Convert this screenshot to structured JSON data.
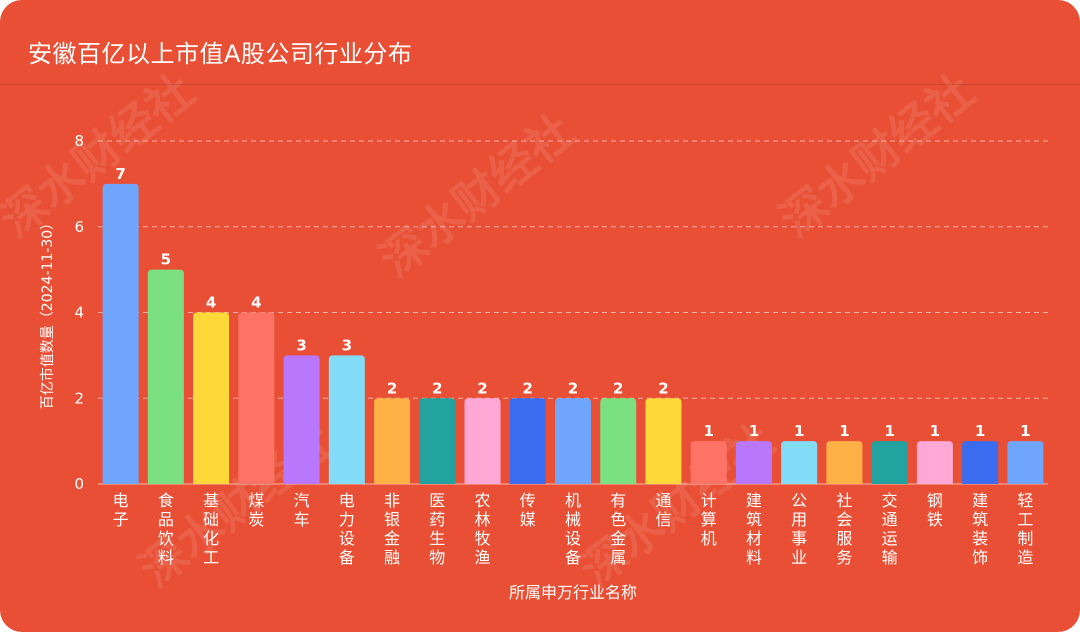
{
  "chart_data": {
    "type": "bar",
    "title": "安徽百亿以上市值A股公司行业分布",
    "xlabel": "所属申万行业名称",
    "ylabel": "百亿市值数量（2024-11-30）",
    "ylim": [
      0,
      8
    ],
    "yticks": [
      0,
      2,
      4,
      6,
      8
    ],
    "grid": true,
    "categories": [
      "电子",
      "食品饮料",
      "基础化工",
      "煤炭",
      "汽车",
      "电力设备",
      "非银金融",
      "医药生物",
      "农林牧渔",
      "传媒",
      "机械设备",
      "有色金属",
      "通信",
      "计算机",
      "建筑材料",
      "公用事业",
      "社会服务",
      "交通运输",
      "钢铁",
      "建筑装饰",
      "轻工制造"
    ],
    "values": [
      7,
      5,
      4,
      4,
      3,
      3,
      2,
      2,
      2,
      2,
      2,
      2,
      2,
      1,
      1,
      1,
      1,
      1,
      1,
      1,
      1
    ],
    "colors": [
      "#6FA6FB",
      "#7BE07F",
      "#FFD93A",
      "#FF7367",
      "#B978FB",
      "#84DDF8",
      "#FFB146",
      "#23A3A0",
      "#FFA8D6",
      "#3B6CF0",
      "#6FA6FB",
      "#7BE07F",
      "#FFD93A",
      "#FF7367",
      "#B978FB",
      "#84DDF8",
      "#FFB146",
      "#23A3A0",
      "#FFA8D6",
      "#3B6CF0",
      "#6FA6FB"
    ]
  },
  "watermark": "深水财经社"
}
